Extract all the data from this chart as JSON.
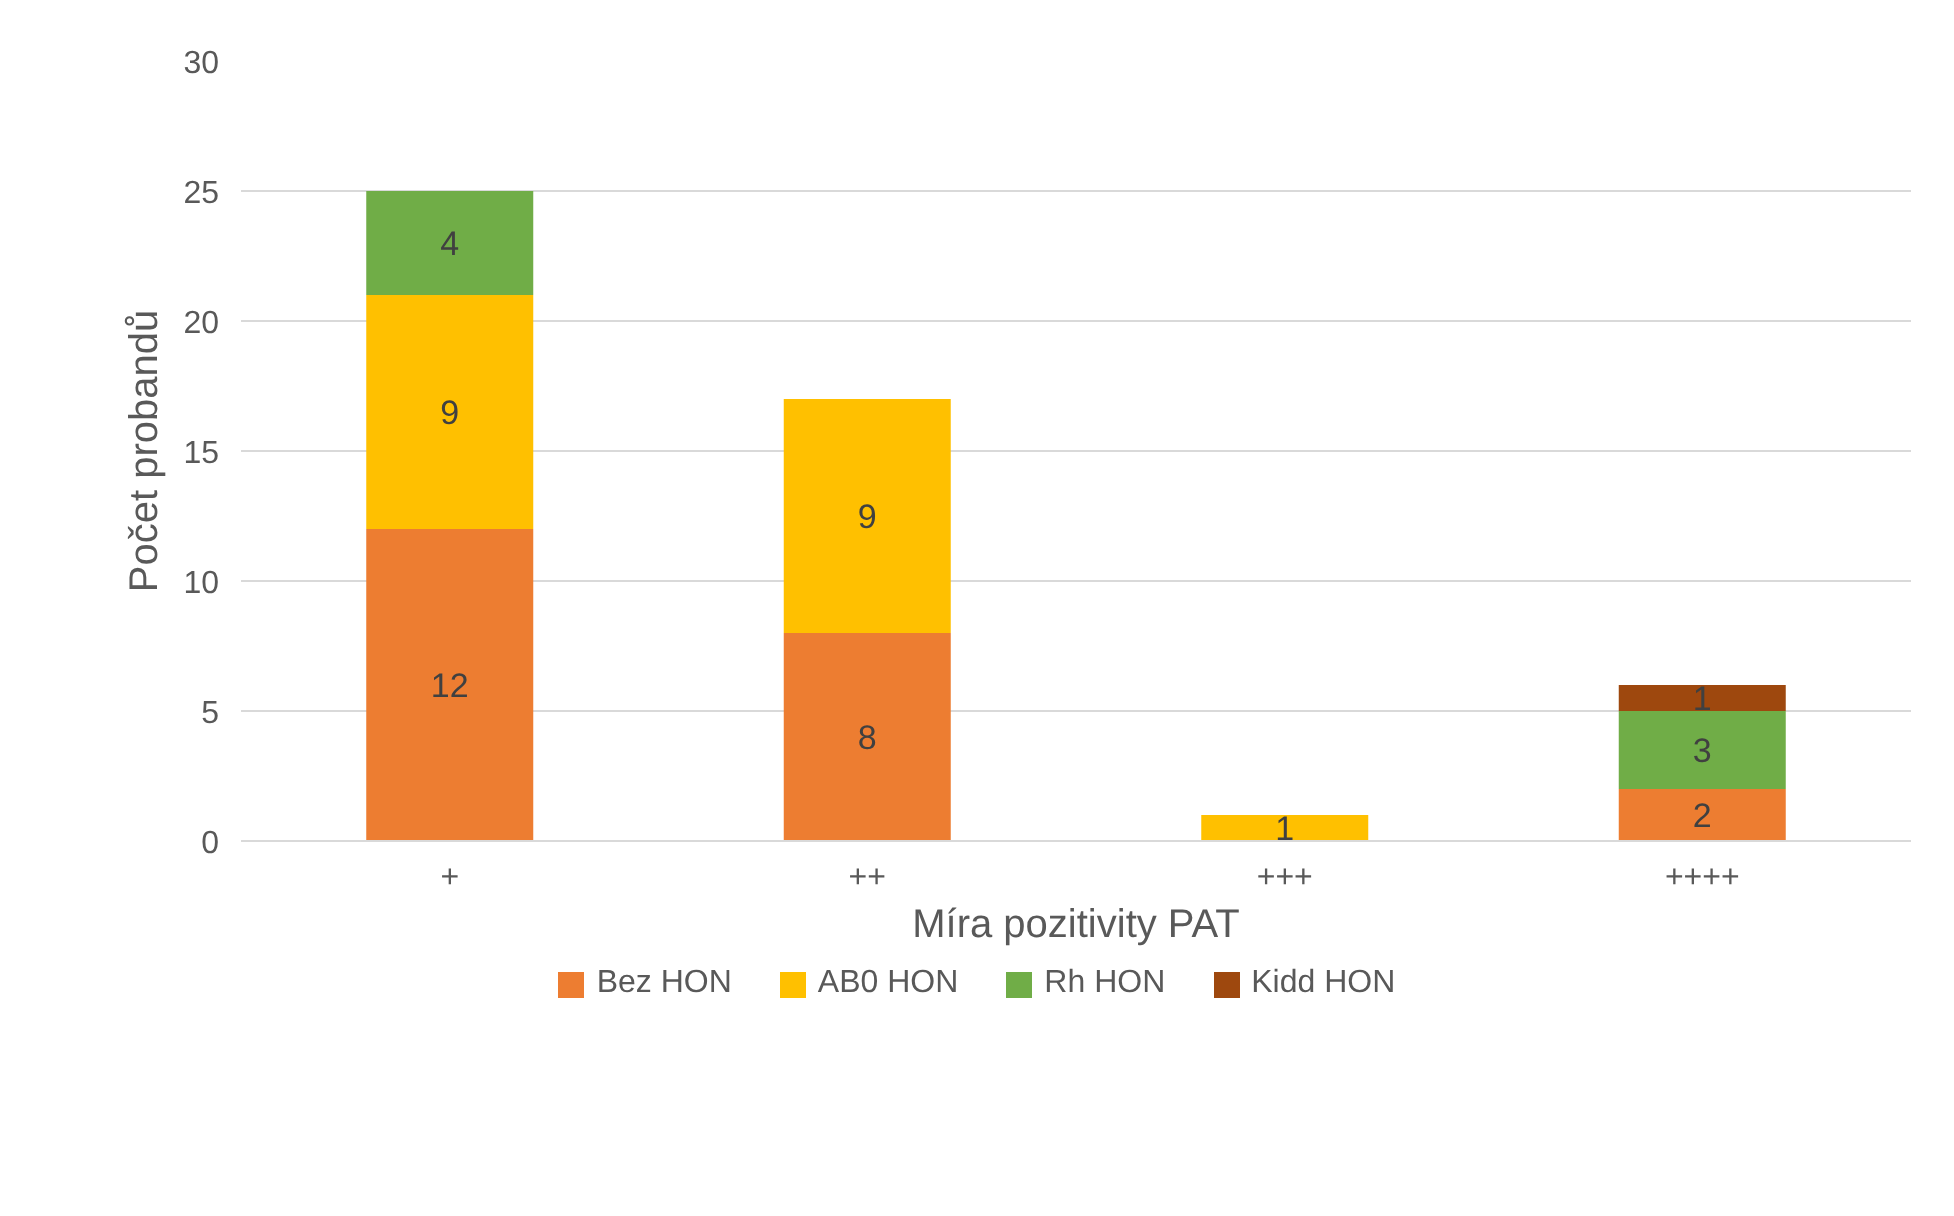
{
  "chart_data": {
    "type": "bar",
    "stacked": true,
    "xlabel": "Míra pozitivity PAT",
    "ylabel": "Počet probandů",
    "categories": [
      "+",
      "++",
      "+++",
      "++++"
    ],
    "series": [
      {
        "name": "Bez HON",
        "color": "#ed7d31",
        "values": [
          12,
          8,
          null,
          2
        ]
      },
      {
        "name": "AB0 HON",
        "color": "#ffc000",
        "values": [
          9,
          9,
          1,
          null
        ]
      },
      {
        "name": "Rh HON",
        "color": "#70ad47",
        "values": [
          4,
          null,
          null,
          3
        ]
      },
      {
        "name": "Kidd HON",
        "color": "#9e480e",
        "values": [
          null,
          null,
          null,
          1
        ]
      }
    ],
    "ylim": [
      0,
      30
    ],
    "yticks": [
      0,
      5,
      10,
      15,
      20,
      25,
      30
    ],
    "grid": "y",
    "legend": "bottom",
    "data_labels": true
  }
}
